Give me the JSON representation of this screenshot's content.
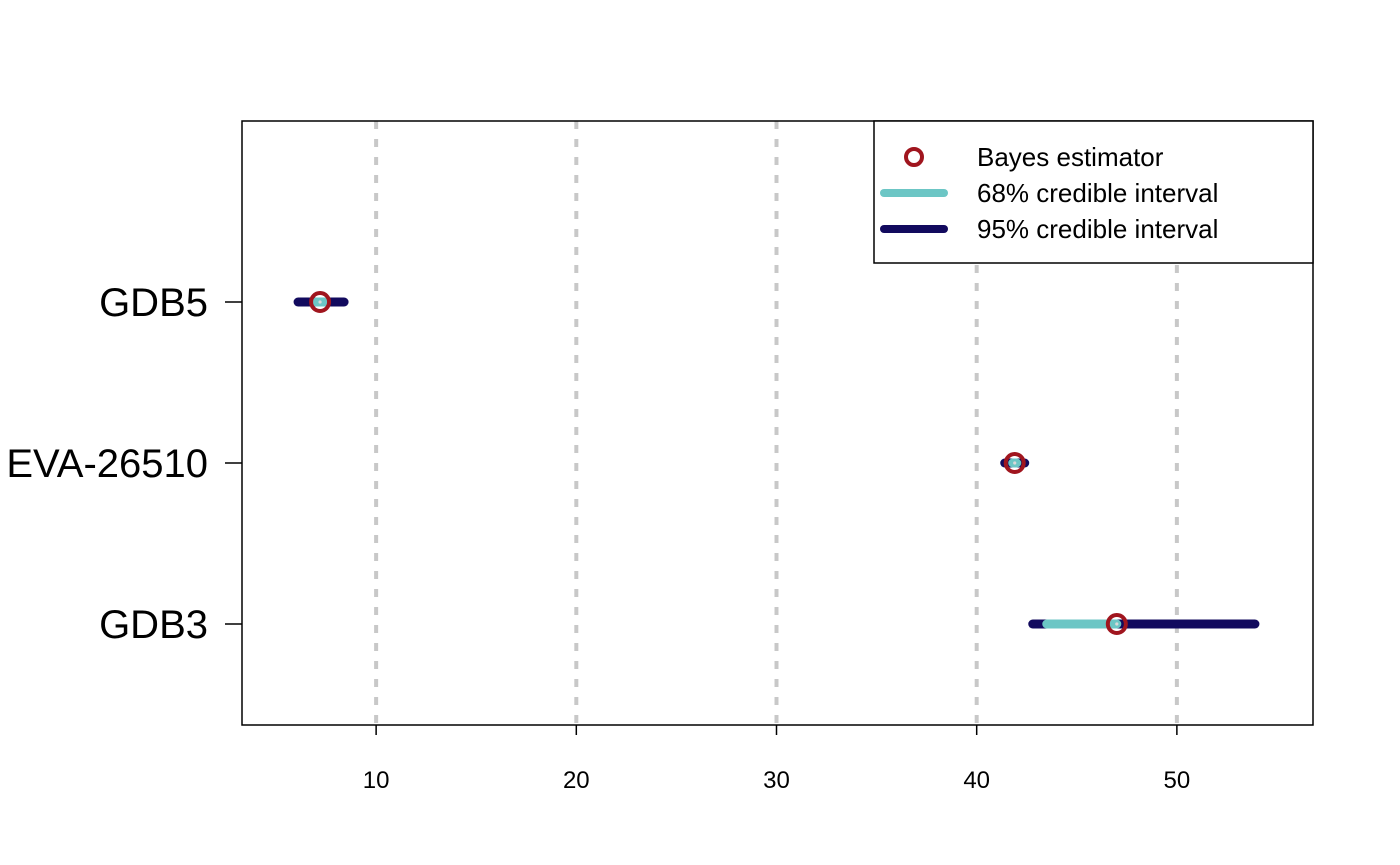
{
  "chart_data": {
    "type": "dot-interval",
    "categories": [
      "GDB5",
      "EVA-26510",
      "GDB3"
    ],
    "series": [
      {
        "name": "Bayes estimator",
        "values": [
          7.2,
          41.9,
          47.0
        ]
      },
      {
        "name": "68% credible interval",
        "intervals": [
          [
            7.0,
            7.5
          ],
          [
            41.8,
            42.0
          ],
          [
            43.5,
            47.0
          ]
        ]
      },
      {
        "name": "95% credible interval",
        "intervals": [
          [
            6.1,
            8.4
          ],
          [
            41.4,
            42.4
          ],
          [
            42.8,
            53.9
          ]
        ]
      }
    ],
    "x_ticks": [
      10,
      20,
      30,
      40,
      50
    ],
    "xlim": [
      3.3,
      56.8
    ],
    "grid": "vertical dashed at x ticks",
    "legend_position": "top-right",
    "colors": {
      "estimator": "#A0151E",
      "ci68": "#6CC6C5",
      "ci95": "#120A5E",
      "grid": "#C8C8C8",
      "frame": "#000000"
    }
  }
}
